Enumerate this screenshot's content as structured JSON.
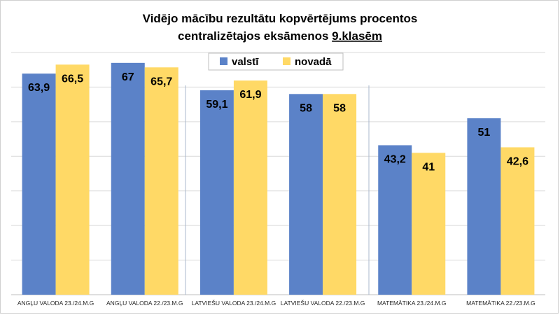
{
  "chart_data": {
    "type": "bar",
    "title_line1": "Vidējo mācību rezultātu kopvērtējums procentos",
    "title_line2_prefix": "centralizētajos eksāmenos ",
    "title_line2_underlined": "9.klasēm",
    "categories": [
      "ANGĻU VALODA 23./24.M.G",
      "ANGĻU VALODA 22./23.M.G",
      "LATVIEŠU VALODA 23./24.M.G",
      "LATVIEŠU VALODA 22./23.M.G",
      "MATEMĀTIKA 23./24.M.G",
      "MATEMĀTIKA 22./23.M.G"
    ],
    "series": [
      {
        "name": "valstī",
        "color": "#5b82c8",
        "values": [
          63.9,
          67,
          59.1,
          58,
          43.2,
          51
        ],
        "labels": [
          "63,9",
          "67",
          "59,1",
          "58",
          "43,2",
          "51"
        ]
      },
      {
        "name": "novadā",
        "color": "#ffd966",
        "values": [
          66.5,
          65.7,
          61.9,
          58,
          41,
          42.6
        ],
        "labels": [
          "66,5",
          "65,7",
          "61,9",
          "58",
          "41",
          "42,6"
        ]
      }
    ],
    "ylim": [
      0,
      70
    ],
    "grid": true,
    "legend_position": "top-center",
    "group_separators": true
  }
}
